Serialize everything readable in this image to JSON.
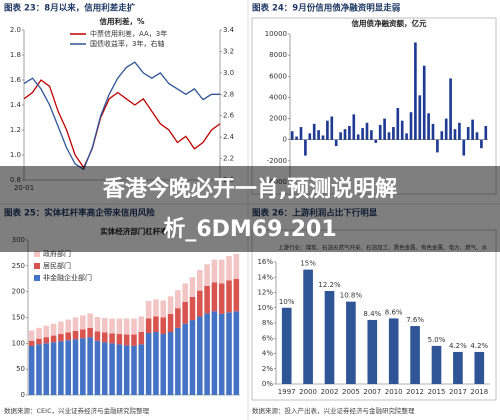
{
  "overlay_lines": [
    "香港今晚必开一肖,预测说明解",
    "析_6DM69.201"
  ],
  "chart_data": [
    {
      "type": "line",
      "figure_label": "图表 23：8月以来，信用利差走扩",
      "title": "信用利差，%",
      "categories": [
        "20-01",
        null,
        null,
        null,
        null,
        null,
        null,
        null,
        null,
        null,
        null,
        null,
        null,
        null,
        null,
        null,
        null,
        null,
        null,
        null,
        null,
        null,
        null,
        null
      ],
      "series": [
        {
          "name": "中票信用利差，AA，3年",
          "color": "#c00000",
          "values": [
            1.45,
            1.5,
            1.6,
            1.55,
            1.35,
            1.2,
            1.0,
            0.9,
            1.05,
            1.3,
            1.45,
            1.5,
            1.45,
            1.4,
            1.45,
            1.35,
            1.25,
            1.2,
            1.1,
            1.15,
            1.05,
            1.1,
            1.2,
            1.25
          ]
        },
        {
          "name": "国债收益率，3年，右轴",
          "color": "#2f5597",
          "axis": "y2",
          "values": [
            2.9,
            2.95,
            2.85,
            2.7,
            2.5,
            2.3,
            2.15,
            2.1,
            2.3,
            2.6,
            2.8,
            2.95,
            3.05,
            3.1,
            3.0,
            2.95,
            3.0,
            2.9,
            2.85,
            2.8,
            2.85,
            2.75,
            2.8,
            2.8
          ]
        }
      ],
      "ylim": [
        0.8,
        2.0
      ],
      "yticks": [
        0.8,
        {
          "value": 1.0,
          "label": "1.0"
        },
        1.2,
        1.4,
        1.6,
        1.8,
        {
          "value": 2.0,
          "label": "2.0"
        }
      ],
      "y2lim": [
        2.0,
        3.4
      ],
      "y2ticks": [
        {
          "value": 2.0,
          "label": "2.0"
        },
        2.2,
        2.4,
        2.6,
        2.8,
        {
          "value": 3.0,
          "label": "3.0"
        },
        3.2,
        3.4
      ]
    },
    {
      "type": "bar",
      "figure_label": "图表 24：9月份信用债净融资明显走弱",
      "title": "信用债净融资额，亿元",
      "color": "#1f3a93",
      "values": [
        800,
        300,
        1200,
        -1500,
        600,
        1500,
        900,
        400,
        1800,
        2200,
        -600,
        700,
        1000,
        1300,
        2400,
        500,
        1100,
        1600,
        900,
        -300,
        1400,
        2000,
        700,
        1200,
        3000,
        1800,
        600,
        2600,
        9200,
        4200,
        7000,
        2500,
        1500,
        -1200,
        800,
        2000,
        5800,
        1000,
        1600,
        -1500,
        1200,
        1900,
        700,
        -800,
        1300
      ],
      "ylim": [
        -4000,
        10000
      ],
      "yticks": [
        -4000,
        -2000,
        0,
        2000,
        4000,
        6000,
        8000,
        10000
      ]
    },
    {
      "type": "stacked_bar",
      "figure_label": "图表 25：实体杠杆率高企带来信用风险",
      "title": "实体经济部门杠杆率",
      "source": "数据来源：CEIC，兴业证券经济与金融研究院整理",
      "series": [
        {
          "name": "非金融企业部门",
          "color": "#4472c4",
          "values": [
            95,
            98,
            100,
            102,
            104,
            106,
            108,
            110,
            112,
            105,
            102,
            100,
            98,
            96,
            95,
            98,
            120,
            122,
            118,
            122,
            130,
            138,
            145,
            152,
            158,
            162,
            157,
            160,
            162
          ]
        },
        {
          "name": "居民部门",
          "color": "#d9534f",
          "values": [
            10,
            11,
            12,
            13,
            14,
            15,
            16,
            17,
            18,
            18,
            19,
            19,
            20,
            21,
            22,
            24,
            28,
            30,
            32,
            35,
            38,
            42,
            45,
            50,
            53,
            56,
            59,
            62,
            63
          ]
        },
        {
          "name": "政府部门",
          "color": "#f2c4c4",
          "values": [
            20,
            21,
            22,
            23,
            24,
            25,
            26,
            27,
            28,
            28,
            28,
            29,
            30,
            31,
            31,
            30,
            34,
            33,
            33,
            34,
            35,
            36,
            38,
            40,
            42,
            44,
            46,
            47,
            48
          ]
        }
      ],
      "ylim": [
        0,
        300
      ],
      "yticks": [
        0,
        50,
        100,
        150,
        200,
        250,
        300
      ]
    },
    {
      "type": "bar",
      "figure_label": "图表 26：上游利润占比下行明显",
      "color": "#2f5597",
      "source": "数据来源：投入产出表，兴业证券经济与金融研究院整理",
      "annotation": "上游行业：煤炭、石油天然气开采、石油加工、黑色金属、有色金属、电力、燃气、水",
      "categories": [
        "1997",
        "2000",
        "2002",
        "2005",
        "2007",
        "2010",
        "2012",
        "2015",
        "2017",
        "2018"
      ],
      "values": [
        10,
        15,
        12.2,
        10.8,
        8.4,
        8.6,
        7.6,
        5.0,
        4.2,
        4.2
      ],
      "value_labels": [
        "10%",
        "15%",
        "12.2%",
        "10.8%",
        "8.4%",
        "8.6%",
        "7.6%",
        "5.0%",
        "4.2%",
        "4.2%"
      ],
      "ylim": [
        0,
        16
      ],
      "yticks": [
        {
          "value": 0,
          "label": "0%"
        },
        {
          "value": 2,
          "label": "2%"
        },
        {
          "value": 4,
          "label": "4%"
        },
        {
          "value": 6,
          "label": "6%"
        },
        {
          "value": 8,
          "label": "8%"
        },
        {
          "value": 10,
          "label": "10%"
        },
        {
          "value": 12,
          "label": "12%"
        },
        {
          "value": 14,
          "label": "14%"
        },
        {
          "value": 16,
          "label": "16%"
        }
      ]
    }
  ]
}
